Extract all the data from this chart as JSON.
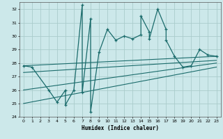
{
  "xlabel": "Humidex (Indice chaleur)",
  "bg_color": "#cce8ea",
  "grid_color": "#aacccc",
  "line_color": "#1a6b6b",
  "xlim": [
    -0.5,
    23.5
  ],
  "ylim": [
    24,
    32.5
  ],
  "xticks": [
    0,
    1,
    2,
    3,
    4,
    5,
    6,
    7,
    8,
    9,
    10,
    11,
    12,
    13,
    14,
    15,
    16,
    17,
    18,
    19,
    20,
    21,
    22,
    23
  ],
  "yticks": [
    24,
    25,
    26,
    27,
    28,
    29,
    30,
    31,
    32
  ],
  "main_x": [
    0,
    1,
    3,
    4,
    5,
    5,
    6,
    7,
    7,
    8,
    8,
    9,
    10,
    11,
    12,
    13,
    14,
    14,
    15,
    15,
    16,
    17,
    17,
    18,
    19,
    20,
    21,
    22,
    23
  ],
  "main_y": [
    27.8,
    27.7,
    26.0,
    25.1,
    26.0,
    24.9,
    26.0,
    32.3,
    25.8,
    31.3,
    24.4,
    28.8,
    30.5,
    29.7,
    30.0,
    29.8,
    30.1,
    31.5,
    30.3,
    29.8,
    32.0,
    30.5,
    29.7,
    28.5,
    27.7,
    27.8,
    29.0,
    28.6,
    28.5
  ],
  "trend_lines": [
    {
      "x": [
        0,
        23
      ],
      "y": [
        27.8,
        28.5
      ]
    },
    {
      "x": [
        0,
        23
      ],
      "y": [
        26.0,
        28.0
      ]
    },
    {
      "x": [
        0,
        23
      ],
      "y": [
        25.0,
        27.7
      ]
    },
    {
      "x": [
        0,
        23
      ],
      "y": [
        27.3,
        28.2
      ]
    }
  ]
}
